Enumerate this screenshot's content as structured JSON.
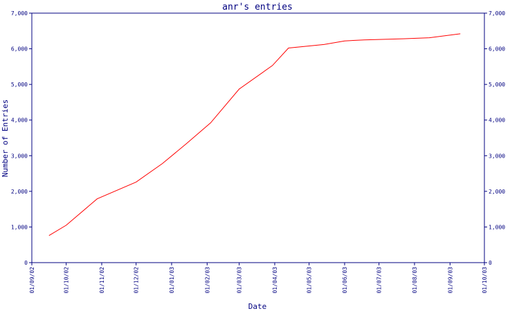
{
  "chart_data": {
    "type": "line",
    "title": "anr's entries",
    "xlabel": "Date",
    "ylabel": "Number of Entries",
    "ylim": [
      0,
      7000
    ],
    "yticks": [
      0,
      1000,
      2000,
      3000,
      4000,
      5000,
      6000,
      7000
    ],
    "ytick_labels": [
      "0",
      "1,000",
      "2,000",
      "3,000",
      "4,000",
      "5,000",
      "6,000",
      "7,000"
    ],
    "xticks": [
      "2002-09-01",
      "2002-10-01",
      "2002-11-01",
      "2002-12-01",
      "2003-01-01",
      "2003-02-01",
      "2003-03-01",
      "2003-04-01",
      "2003-05-01",
      "2003-06-01",
      "2003-07-01",
      "2003-08-01",
      "2003-09-01",
      "2003-10-01"
    ],
    "xtick_labels": [
      "01/09/02",
      "01/10/02",
      "01/11/02",
      "01/12/02",
      "01/01/03",
      "01/02/03",
      "01/03/03",
      "01/04/03",
      "01/05/03",
      "01/06/03",
      "01/07/03",
      "01/08/03",
      "01/09/03",
      "01/10/03"
    ],
    "xlim": [
      "2002-09-01",
      "2003-10-01"
    ],
    "secondary_y_axis": true,
    "grid": false,
    "colors": {
      "line": "#ff0000",
      "axis": "#000080",
      "text": "#000080"
    },
    "series": [
      {
        "points": [
          [
            "2002-09-16",
            760
          ],
          [
            "2002-10-01",
            1050
          ],
          [
            "2002-10-28",
            1790
          ],
          [
            "2002-12-01",
            2260
          ],
          [
            "2002-12-24",
            2780
          ],
          [
            "2003-01-14",
            3340
          ],
          [
            "2003-02-04",
            3920
          ],
          [
            "2003-03-01",
            4870
          ],
          [
            "2003-03-30",
            5530
          ],
          [
            "2003-04-13",
            6020
          ],
          [
            "2003-05-14",
            6120
          ],
          [
            "2003-06-01",
            6220
          ],
          [
            "2003-06-18",
            6250
          ],
          [
            "2003-07-22",
            6280
          ],
          [
            "2003-08-14",
            6310
          ],
          [
            "2003-09-10",
            6420
          ]
        ]
      }
    ]
  }
}
